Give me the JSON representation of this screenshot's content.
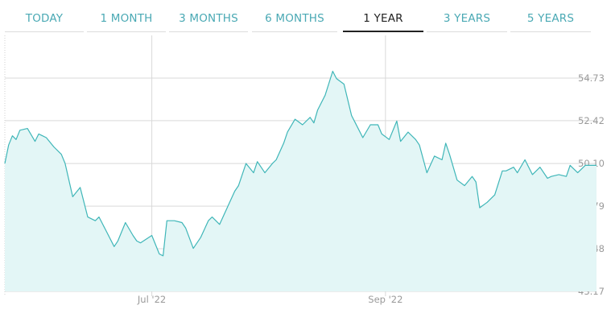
{
  "colors": {
    "accent": "#3aafb0",
    "tab_text": "#4aa9b4",
    "tab_active_text": "#222222",
    "line": "#3fb6b8",
    "fill": "#e3f6f6",
    "grid": "#d9d9d9",
    "axis_text": "#9a9a9a"
  },
  "tabs": [
    {
      "label": "TODAY",
      "active": false
    },
    {
      "label": "1 MONTH",
      "active": false
    },
    {
      "label": "3 MONTHS",
      "active": false
    },
    {
      "label": "6 MONTHS",
      "active": false
    },
    {
      "label": "1 YEAR",
      "active": true
    },
    {
      "label": "3 YEARS",
      "active": false
    },
    {
      "label": "5 YEARS",
      "active": false
    }
  ],
  "chart_data": {
    "type": "area",
    "title": "",
    "xlabel": "",
    "ylabel": "",
    "grid": true,
    "y_axis_position": "right",
    "ylim": [
      43.17,
      57.04
    ],
    "y_ticks": [
      "43.17",
      "45.48",
      "47.79",
      "50.10",
      "52.42",
      "54.73"
    ],
    "xlim": [
      "2022-05-23",
      "2022-10-27"
    ],
    "x_ticks": [
      {
        "label": "Jul '22",
        "date": "2022-07-01"
      },
      {
        "label": "Sep '22",
        "date": "2022-09-01"
      }
    ],
    "series": [
      {
        "name": "",
        "x": [
          "2022-05-23",
          "2022-05-24",
          "2022-05-25",
          "2022-05-26",
          "2022-05-27",
          "2022-05-29",
          "2022-05-31",
          "2022-06-01",
          "2022-06-02",
          "2022-06-03",
          "2022-06-05",
          "2022-06-07",
          "2022-06-08",
          "2022-06-09",
          "2022-06-10",
          "2022-06-12",
          "2022-06-14",
          "2022-06-16",
          "2022-06-17",
          "2022-06-19",
          "2022-06-21",
          "2022-06-22",
          "2022-06-24",
          "2022-06-26",
          "2022-06-27",
          "2022-06-28",
          "2022-07-01",
          "2022-07-03",
          "2022-07-04",
          "2022-07-05",
          "2022-07-07",
          "2022-07-09",
          "2022-07-10",
          "2022-07-12",
          "2022-07-14",
          "2022-07-16",
          "2022-07-17",
          "2022-07-19",
          "2022-07-21",
          "2022-07-23",
          "2022-07-24",
          "2022-07-26",
          "2022-07-28",
          "2022-07-29",
          "2022-07-31",
          "2022-08-02",
          "2022-08-03",
          "2022-08-05",
          "2022-08-06",
          "2022-08-08",
          "2022-08-10",
          "2022-08-12",
          "2022-08-13",
          "2022-08-14",
          "2022-08-16",
          "2022-08-18",
          "2022-08-19",
          "2022-08-21",
          "2022-08-23",
          "2022-08-24",
          "2022-08-26",
          "2022-08-28",
          "2022-08-30",
          "2022-08-31",
          "2022-09-02",
          "2022-09-04",
          "2022-09-05",
          "2022-09-07",
          "2022-09-09",
          "2022-09-10",
          "2022-09-12",
          "2022-09-14",
          "2022-09-16",
          "2022-09-17",
          "2022-09-18",
          "2022-09-20",
          "2022-09-22",
          "2022-09-24",
          "2022-09-25",
          "2022-09-26",
          "2022-09-28",
          "2022-09-30",
          "2022-10-02",
          "2022-10-03",
          "2022-10-05",
          "2022-10-06",
          "2022-10-08",
          "2022-10-10",
          "2022-10-12",
          "2022-10-14",
          "2022-10-15",
          "2022-10-17",
          "2022-10-19",
          "2022-10-20",
          "2022-10-22",
          "2022-10-24",
          "2022-10-25",
          "2022-10-27"
        ],
        "values": [
          50.1,
          51.1,
          51.6,
          51.4,
          51.9,
          52.0,
          51.3,
          51.7,
          51.6,
          51.5,
          51.0,
          50.6,
          50.1,
          49.2,
          48.3,
          48.8,
          47.2,
          47.0,
          47.2,
          46.4,
          45.6,
          45.9,
          46.9,
          46.2,
          45.9,
          45.8,
          46.2,
          45.2,
          45.1,
          47.0,
          47.0,
          46.9,
          46.6,
          45.5,
          46.1,
          47.0,
          47.2,
          46.8,
          47.7,
          48.6,
          48.9,
          50.1,
          49.6,
          50.2,
          49.6,
          50.1,
          50.3,
          51.2,
          51.8,
          52.5,
          52.2,
          52.6,
          52.3,
          53.0,
          53.8,
          55.1,
          54.7,
          54.4,
          52.7,
          52.3,
          51.5,
          52.2,
          52.2,
          51.7,
          51.4,
          52.4,
          51.3,
          51.8,
          51.4,
          51.1,
          49.6,
          50.5,
          50.3,
          51.2,
          50.6,
          49.2,
          48.9,
          49.4,
          49.1,
          47.7,
          48.0,
          48.4,
          49.7,
          49.7,
          49.9,
          49.6,
          50.3,
          49.5,
          49.9,
          49.3,
          49.4,
          49.5,
          49.4,
          50.0,
          49.6,
          50.0,
          50.0,
          50.0
        ]
      }
    ]
  }
}
